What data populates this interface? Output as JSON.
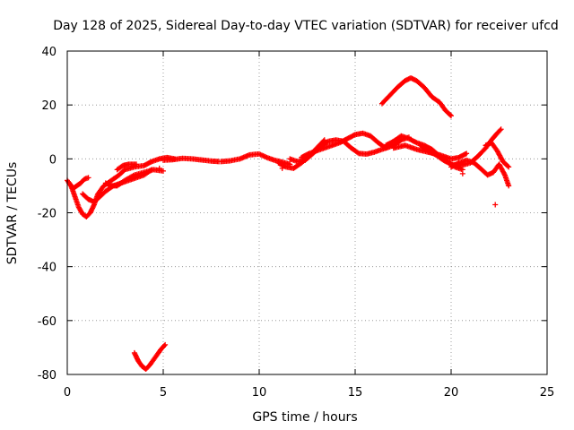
{
  "chart_data": {
    "type": "scatter",
    "title": "Day 128 of 2025, Sidereal Day-to-day VTEC variation (SDTVAR) for receiver ufcd",
    "xlabel": "GPS time / hours",
    "ylabel": "SDTVAR / TECUs",
    "xlim": [
      0,
      25
    ],
    "ylim": [
      -80,
      40
    ],
    "x_ticks": [
      0,
      5,
      10,
      15,
      20,
      25
    ],
    "y_ticks": [
      -80,
      -60,
      -40,
      -20,
      0,
      20,
      40
    ],
    "x_tick_labels": [
      "0",
      "5",
      "10",
      "15",
      "20",
      "25"
    ],
    "y_tick_labels": [
      "-80",
      "-60",
      "-40",
      "-20",
      "0",
      "20",
      "40"
    ],
    "grid": true,
    "marker": "+",
    "color": "#ff0000",
    "series": [
      {
        "name": "track-a",
        "points": [
          [
            0.0,
            -8
          ],
          [
            0.2,
            -10
          ],
          [
            0.4,
            -14
          ],
          [
            0.6,
            -18
          ],
          [
            0.8,
            -20.5
          ],
          [
            1.0,
            -21.5
          ],
          [
            1.2,
            -20
          ],
          [
            1.4,
            -17
          ],
          [
            1.6,
            -13
          ],
          [
            1.9,
            -10
          ],
          [
            2.3,
            -8
          ],
          [
            2.7,
            -6
          ],
          [
            3.0,
            -4
          ],
          [
            3.5,
            -3
          ],
          [
            4.0,
            -2.5
          ],
          [
            4.4,
            -1
          ],
          [
            4.8,
            0
          ],
          [
            5.2,
            0.5
          ],
          [
            5.6,
            0
          ]
        ]
      },
      {
        "name": "track-b",
        "points": [
          [
            0.1,
            -9
          ],
          [
            0.3,
            -11
          ],
          [
            0.5,
            -10
          ],
          [
            0.7,
            -9
          ],
          [
            0.9,
            -7.5
          ],
          [
            1.1,
            -7
          ]
        ]
      },
      {
        "name": "track-c",
        "points": [
          [
            0.8,
            -13
          ],
          [
            1.1,
            -15
          ],
          [
            1.4,
            -16
          ],
          [
            1.7,
            -14
          ],
          [
            2.0,
            -12
          ],
          [
            2.4,
            -10
          ],
          [
            2.8,
            -9
          ],
          [
            3.2,
            -8
          ],
          [
            3.6,
            -7
          ],
          [
            4.0,
            -6
          ],
          [
            4.4,
            -4
          ]
        ]
      },
      {
        "name": "track-d",
        "points": [
          [
            2.0,
            -9
          ],
          [
            2.3,
            -10
          ],
          [
            2.6,
            -10
          ],
          [
            3.0,
            -8
          ],
          [
            3.5,
            -6
          ],
          [
            4.0,
            -5
          ],
          [
            4.5,
            -4
          ],
          [
            5.0,
            -4.5
          ]
        ]
      },
      {
        "name": "track-e",
        "points": [
          [
            2.6,
            -4
          ],
          [
            2.9,
            -2.5
          ],
          [
            3.2,
            -2
          ],
          [
            3.6,
            -2
          ]
        ]
      },
      {
        "name": "track-f",
        "points": [
          [
            5.0,
            -0.5
          ],
          [
            5.5,
            -0.3
          ],
          [
            6.0,
            0.2
          ],
          [
            6.5,
            0
          ],
          [
            7.0,
            -0.4
          ],
          [
            7.5,
            -0.8
          ],
          [
            7.9,
            -1
          ]
        ]
      },
      {
        "name": "track-g",
        "points": [
          [
            8.0,
            -1
          ],
          [
            8.5,
            -0.7
          ],
          [
            9.0,
            0
          ],
          [
            9.5,
            1.5
          ],
          [
            10.0,
            1.8
          ],
          [
            10.4,
            0.5
          ],
          [
            10.8,
            -0.5
          ],
          [
            11.2,
            -1.2
          ],
          [
            11.6,
            -2
          ]
        ]
      },
      {
        "name": "track-h",
        "points": [
          [
            11.0,
            -1.5
          ],
          [
            11.4,
            -3
          ],
          [
            11.8,
            -3.5
          ],
          [
            12.2,
            -1.5
          ],
          [
            12.6,
            1
          ],
          [
            13.0,
            4
          ],
          [
            13.4,
            7
          ]
        ]
      },
      {
        "name": "track-i",
        "points": [
          [
            11.6,
            0
          ],
          [
            12.0,
            -1
          ],
          [
            12.4,
            -0.5
          ],
          [
            12.8,
            2
          ],
          [
            13.2,
            4.5
          ],
          [
            13.6,
            6.5
          ],
          [
            14.0,
            7
          ],
          [
            14.4,
            6.5
          ],
          [
            14.8,
            4
          ],
          [
            15.2,
            2
          ],
          [
            15.6,
            1.8
          ],
          [
            16.0,
            2.5
          ],
          [
            16.4,
            3.5
          ],
          [
            16.8,
            4.5
          ]
        ]
      },
      {
        "name": "track-j",
        "points": [
          [
            12.2,
            0.5
          ],
          [
            12.6,
            2
          ],
          [
            13.0,
            3
          ],
          [
            13.4,
            4
          ],
          [
            13.8,
            5
          ],
          [
            14.2,
            6
          ],
          [
            14.6,
            7.5
          ],
          [
            15.0,
            9
          ],
          [
            15.4,
            9.5
          ],
          [
            15.8,
            8.5
          ],
          [
            16.2,
            6
          ],
          [
            16.6,
            4
          ],
          [
            17.0,
            5
          ],
          [
            17.4,
            7
          ],
          [
            17.8,
            8
          ]
        ]
      },
      {
        "name": "track-k",
        "points": [
          [
            16.4,
            20.5
          ],
          [
            16.8,
            23.5
          ],
          [
            17.2,
            26.5
          ],
          [
            17.6,
            29
          ],
          [
            17.9,
            30
          ],
          [
            18.2,
            29
          ],
          [
            18.6,
            26.5
          ],
          [
            19.0,
            23
          ],
          [
            19.4,
            21
          ],
          [
            19.7,
            18
          ],
          [
            20.0,
            16
          ]
        ]
      },
      {
        "name": "track-l",
        "points": [
          [
            16.6,
            5
          ],
          [
            17.0,
            6.5
          ],
          [
            17.4,
            8.5
          ],
          [
            17.8,
            7.5
          ],
          [
            18.2,
            6
          ],
          [
            18.6,
            5
          ],
          [
            19.0,
            3.5
          ],
          [
            19.4,
            1
          ],
          [
            19.8,
            -1
          ],
          [
            20.2,
            -3
          ],
          [
            20.6,
            -4
          ]
        ]
      },
      {
        "name": "track-m",
        "points": [
          [
            17.0,
            4
          ],
          [
            17.6,
            5
          ],
          [
            18.2,
            3.5
          ],
          [
            18.8,
            2.5
          ],
          [
            19.4,
            1.5
          ],
          [
            20.0,
            0
          ],
          [
            20.4,
            0.5
          ],
          [
            20.8,
            2
          ]
        ]
      },
      {
        "name": "track-n",
        "points": [
          [
            18.4,
            5
          ],
          [
            18.8,
            3
          ],
          [
            19.2,
            1.5
          ],
          [
            19.6,
            -0.5
          ],
          [
            20.0,
            -2
          ],
          [
            20.5,
            -2.5
          ],
          [
            21.0,
            -1.5
          ],
          [
            21.4,
            1
          ],
          [
            21.8,
            4
          ],
          [
            22.1,
            7
          ],
          [
            22.4,
            9.5
          ],
          [
            22.6,
            11
          ]
        ]
      },
      {
        "name": "track-o",
        "points": [
          [
            20.0,
            -3
          ],
          [
            20.4,
            -1.5
          ],
          [
            20.8,
            -0.5
          ],
          [
            21.2,
            -1.5
          ],
          [
            21.6,
            -4
          ],
          [
            21.9,
            -6
          ],
          [
            22.2,
            -5
          ],
          [
            22.5,
            -2
          ],
          [
            22.8,
            -6
          ],
          [
            23.0,
            -10
          ]
        ]
      },
      {
        "name": "track-p",
        "points": [
          [
            21.8,
            5
          ],
          [
            22.1,
            6
          ],
          [
            22.4,
            3
          ],
          [
            22.7,
            -1
          ],
          [
            23.0,
            -3
          ]
        ]
      },
      {
        "name": "track-q",
        "points": [
          [
            3.5,
            -72
          ],
          [
            3.7,
            -75
          ],
          [
            3.9,
            -77
          ],
          [
            4.1,
            -78
          ],
          [
            4.3,
            -76.5
          ],
          [
            4.6,
            -73.5
          ],
          [
            4.9,
            -70.5
          ],
          [
            5.1,
            -69
          ]
        ]
      },
      {
        "name": "outliers",
        "points": [
          [
            22.3,
            -17
          ],
          [
            4.8,
            -3.5
          ],
          [
            20.6,
            -5.5
          ],
          [
            11.2,
            -3.5
          ]
        ]
      }
    ]
  }
}
